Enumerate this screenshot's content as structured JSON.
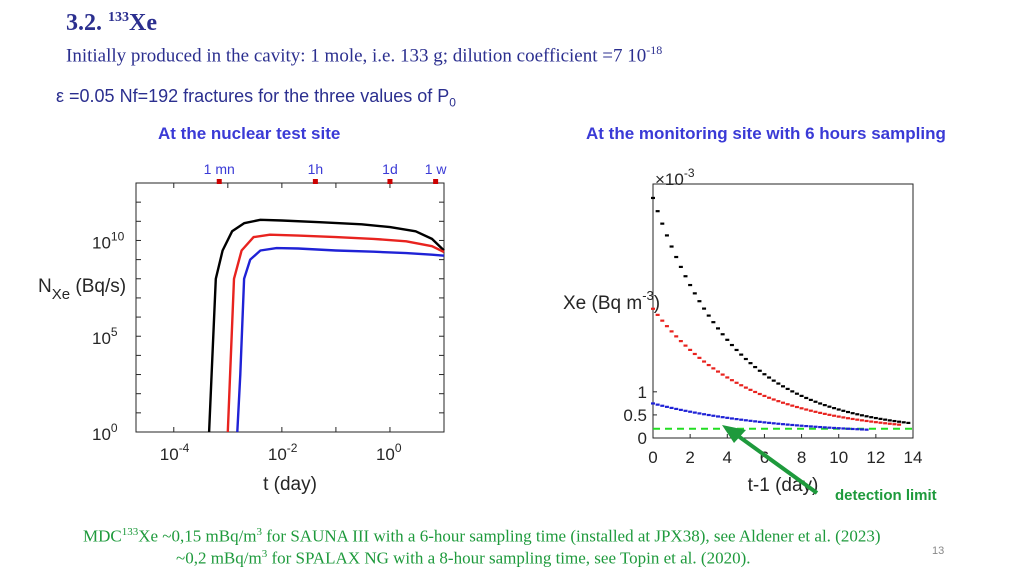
{
  "header": {
    "section": "3.2.",
    "isotope_mass": "133",
    "element": "Xe",
    "subtitle_text": "Initially produced in the cavity: 1 mole, i.e. 133 g;   dilution coefficient   =7 10",
    "subtitle_exp": "-18",
    "param_text": "ε =0.05 Nf=192 fractures for the three values of P",
    "param_sub": "0"
  },
  "columns": {
    "left_title": "At the nuclear test site",
    "right_title": "At the monitoring site with 6 hours sampling"
  },
  "colors": {
    "heading": "#2b2f8f",
    "column_title": "#3a3ad6",
    "footer": "#1e9a3c",
    "marker": "#cc0000",
    "series_black": "#000000",
    "series_red": "#e8231f",
    "series_blue": "#1f22d6",
    "detection": "#22dd22",
    "arrow": "#1e9a3c"
  },
  "chart_data": [
    {
      "type": "line",
      "xlabel": "t (day)",
      "ylabel_main": "N",
      "ylabel_sub": "Xe",
      "ylabel_unit": " (Bq/s)",
      "xscale": "log",
      "yscale": "log",
      "xlim": [
        2e-05,
        10
      ],
      "ylim": [
        1,
        10000000000000
      ],
      "x_ticks": [
        {
          "value": 0.0001,
          "base": "10",
          "exp": "-4"
        },
        {
          "value": 0.01,
          "base": "10",
          "exp": "-2"
        },
        {
          "value": 1,
          "base": "10",
          "exp": "0"
        }
      ],
      "y_ticks": [
        {
          "value": 1,
          "base": "10",
          "exp": "0"
        },
        {
          "value": 100000,
          "base": "10",
          "exp": "5"
        },
        {
          "value": 10000000000,
          "base": "10",
          "exp": "10"
        }
      ],
      "top_markers": [
        {
          "label": "1 mn",
          "value": 0.000694
        },
        {
          "label": "1h",
          "value": 0.0417
        },
        {
          "label": "1d",
          "value": 1
        },
        {
          "label": "1 w",
          "value": 7
        }
      ],
      "series": [
        {
          "color": "#000000",
          "x": [
            0.00045,
            0.0005,
            0.0006,
            0.0008,
            0.0012,
            0.002,
            0.004,
            0.01,
            0.05,
            0.3,
            1,
            3,
            6,
            10
          ],
          "y": [
            1,
            1000,
            100000000,
            3000000000,
            30000000000,
            80000000000,
            120000000000,
            110000000000,
            90000000000,
            70000000000,
            50000000000,
            30000000000,
            12000000000,
            3000000000
          ]
        },
        {
          "color": "#e8231f",
          "x": [
            0.001,
            0.0011,
            0.0013,
            0.0018,
            0.003,
            0.006,
            0.02,
            0.1,
            0.5,
            2,
            6,
            10
          ],
          "y": [
            1,
            1000,
            100000000,
            3000000000,
            15000000000,
            20000000000,
            18000000000,
            15000000000,
            12000000000,
            9000000000,
            5000000000,
            2500000000
          ]
        },
        {
          "color": "#1f22d6",
          "x": [
            0.0015,
            0.0017,
            0.002,
            0.0026,
            0.004,
            0.008,
            0.02,
            0.1,
            0.5,
            2,
            6,
            10
          ],
          "y": [
            1,
            1000,
            100000000,
            1000000000,
            3000000000,
            4000000000,
            3800000000,
            3000000000,
            2600000000,
            2200000000,
            1800000000,
            1600000000
          ]
        }
      ]
    },
    {
      "type": "scatter",
      "xlabel": "t-1 (day)",
      "ylabel": "Xe (Bq m",
      "ylabel_exp": "-3",
      "ylabel_close": ")",
      "y_multiplier_base": "×10",
      "y_multiplier_exp": "-3",
      "xlim": [
        0,
        14
      ],
      "ylim": [
        0,
        5.5
      ],
      "x_ticks": [
        0,
        2,
        4,
        6,
        8,
        10,
        12,
        14
      ],
      "y_ticks": [
        {
          "value": 0,
          "label": "0"
        },
        {
          "value": 0.5,
          "label": "0.5"
        },
        {
          "value": 1,
          "label": "1"
        }
      ],
      "detection_limit": 0.2,
      "annotation": "detection limit",
      "series": [
        {
          "color": "#000000",
          "start": 5.2,
          "decay": 0.232,
          "tail": 0.12,
          "x_end": 13.75
        },
        {
          "color": "#e8231f",
          "start": 2.8,
          "decay": 0.2,
          "tail": 0.1,
          "x_end": 13.25
        },
        {
          "color": "#1f22d6",
          "start": 0.75,
          "decay": 0.15,
          "tail": 0.06,
          "x_end": 11.5
        }
      ]
    }
  ],
  "footer": {
    "line1_pre": "MDC",
    "line1_sup": "133",
    "line1_mid": "Xe ~0,15 mBq/m",
    "line1_sup2": "3",
    "line1_post": " for SAUNA III with a 6-hour sampling time (installed at JPX38), see Aldener et al. (2023)",
    "line2_pre": "~0,2 mBq/m",
    "line2_sup": "3",
    "line2_post": " for SPALAX NG with a 8-hour sampling time, see Topin et al. (2020).",
    "page_number": "13"
  }
}
